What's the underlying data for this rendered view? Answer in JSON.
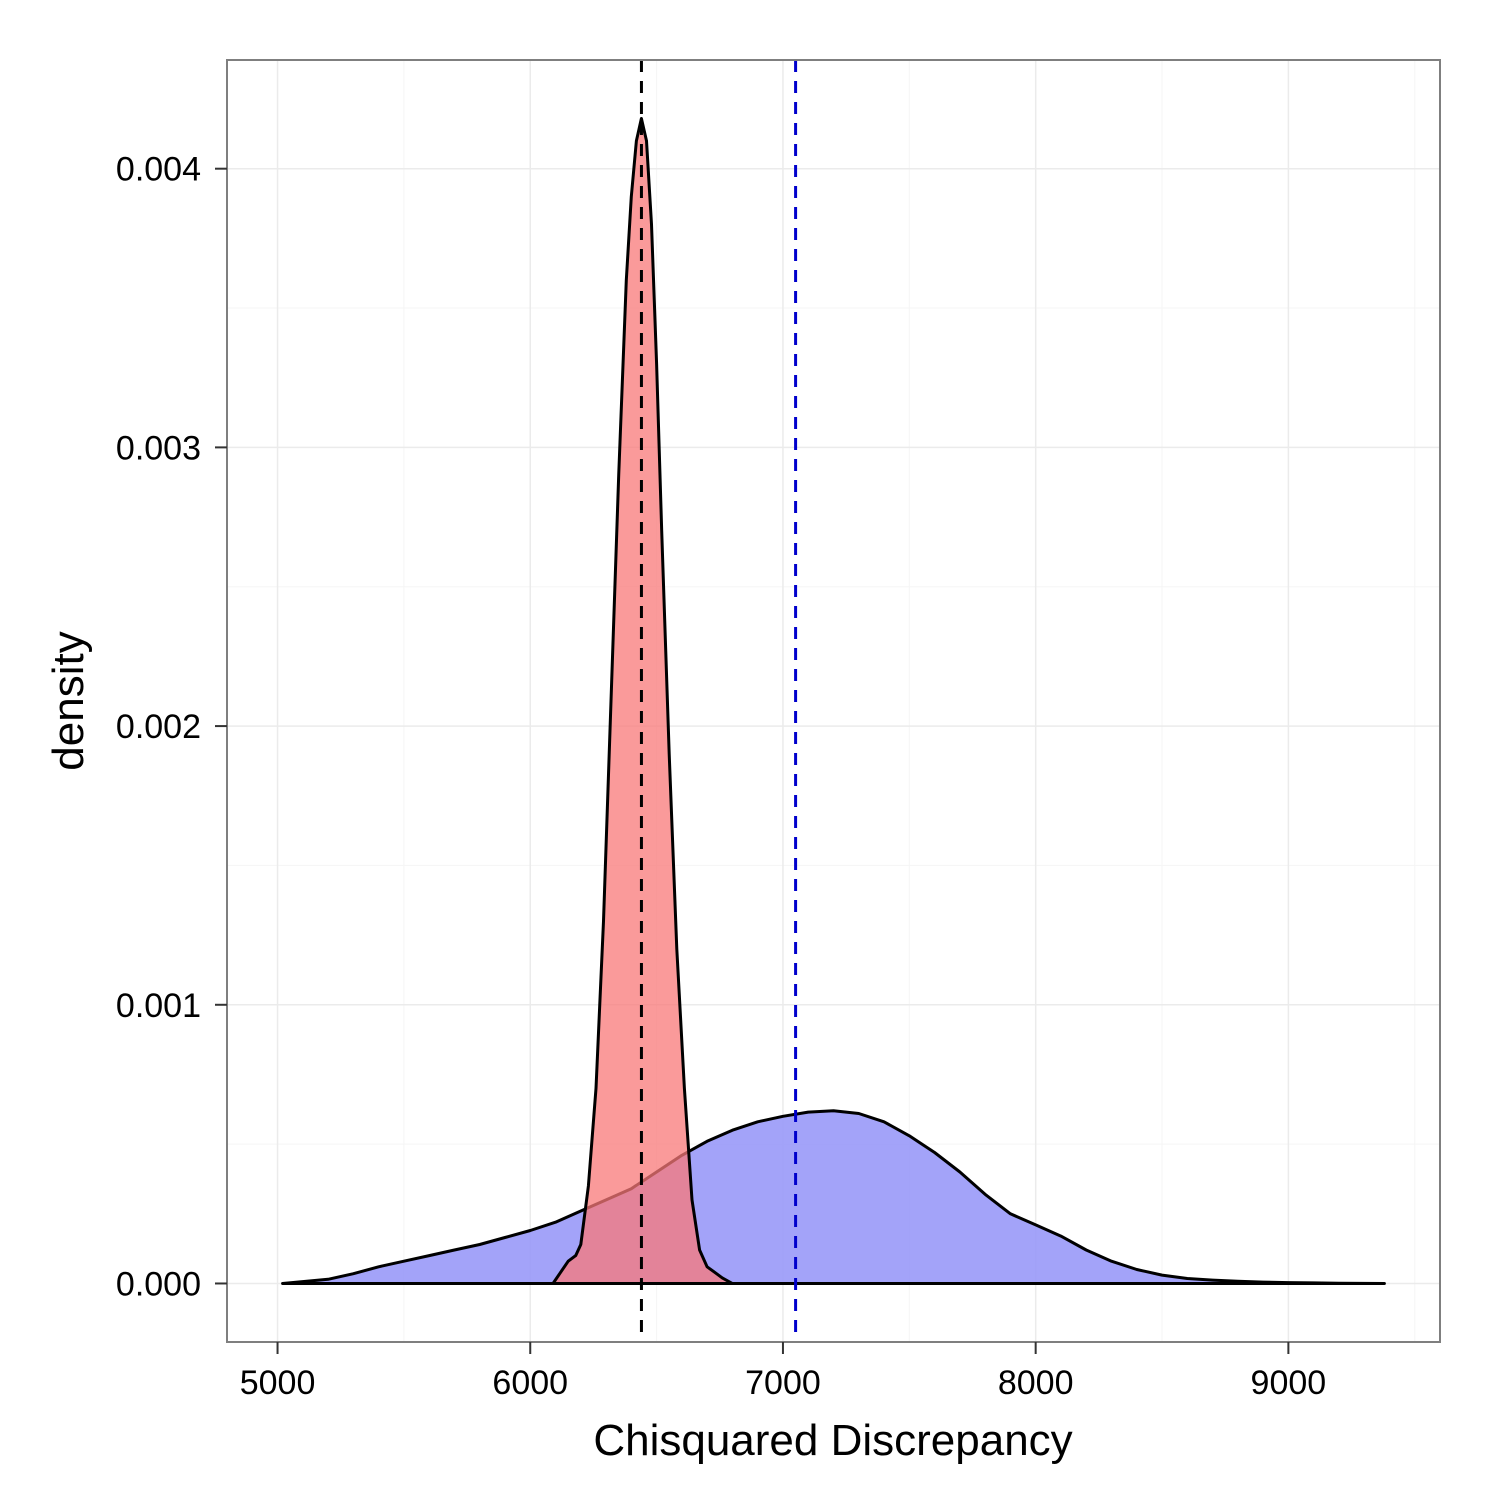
{
  "chart_data": {
    "type": "area",
    "title": "",
    "xlabel": "Chisquared Discrepancy",
    "ylabel": "density",
    "xlim": [
      4800,
      9600
    ],
    "ylim": [
      -0.00021,
      0.00439
    ],
    "grid": true,
    "legend": "none",
    "x_ticks": [
      5000,
      6000,
      7000,
      8000,
      9000
    ],
    "x_tick_labels": [
      "5000",
      "6000",
      "7000",
      "8000",
      "9000"
    ],
    "y_ticks": [
      0.0,
      0.001,
      0.002,
      0.003,
      0.004
    ],
    "y_tick_labels": [
      "0.000",
      "0.001",
      "0.002",
      "0.003",
      "0.004"
    ],
    "series": [
      {
        "fill": "#9999f8",
        "outline": "#000000",
        "x": [
          5020,
          5200,
          5300,
          5400,
          5500,
          5600,
          5700,
          5800,
          5900,
          6000,
          6100,
          6200,
          6300,
          6400,
          6500,
          6600,
          6700,
          6800,
          6900,
          7000,
          7100,
          7200,
          7300,
          7400,
          7500,
          7600,
          7700,
          7800,
          7900,
          8000,
          8100,
          8200,
          8300,
          8400,
          8500,
          8600,
          8700,
          8800,
          8900,
          9000,
          9100,
          9200,
          9380
        ],
        "y": [
          0.0,
          1.5e-05,
          3.5e-05,
          6e-05,
          8e-05,
          0.0001,
          0.00012,
          0.00014,
          0.000165,
          0.00019,
          0.00022,
          0.00026,
          0.0003,
          0.00034,
          0.0004,
          0.00046,
          0.00051,
          0.00055,
          0.00058,
          0.0006,
          0.000615,
          0.00062,
          0.00061,
          0.00058,
          0.00053,
          0.00047,
          0.0004,
          0.00032,
          0.00025,
          0.00021,
          0.00017,
          0.00012,
          8e-05,
          5e-05,
          3e-05,
          1.8e-05,
          1.2e-05,
          8e-06,
          5e-06,
          3e-06,
          2e-06,
          1e-06,
          0.0
        ]
      },
      {
        "fill": "#f87878",
        "outline": "#000000",
        "x": [
          6090,
          6120,
          6150,
          6180,
          6200,
          6230,
          6260,
          6290,
          6320,
          6350,
          6380,
          6400,
          6420,
          6440,
          6460,
          6480,
          6500,
          6520,
          6550,
          6580,
          6610,
          6640,
          6670,
          6700,
          6730,
          6760,
          6800
        ],
        "y": [
          0.0,
          4e-05,
          8e-05,
          0.0001,
          0.00014,
          0.00035,
          0.0007,
          0.0013,
          0.0021,
          0.0029,
          0.0036,
          0.0039,
          0.0041,
          0.00418,
          0.0041,
          0.0038,
          0.0033,
          0.0027,
          0.0019,
          0.0012,
          0.0007,
          0.0003,
          0.00012,
          6e-05,
          4e-05,
          2e-05,
          0.0
        ]
      }
    ],
    "vlines": [
      {
        "x": 6440,
        "color": "#000000",
        "style": "dashed"
      },
      {
        "x": 7050,
        "color": "#0000cc",
        "style": "dashed"
      }
    ]
  }
}
